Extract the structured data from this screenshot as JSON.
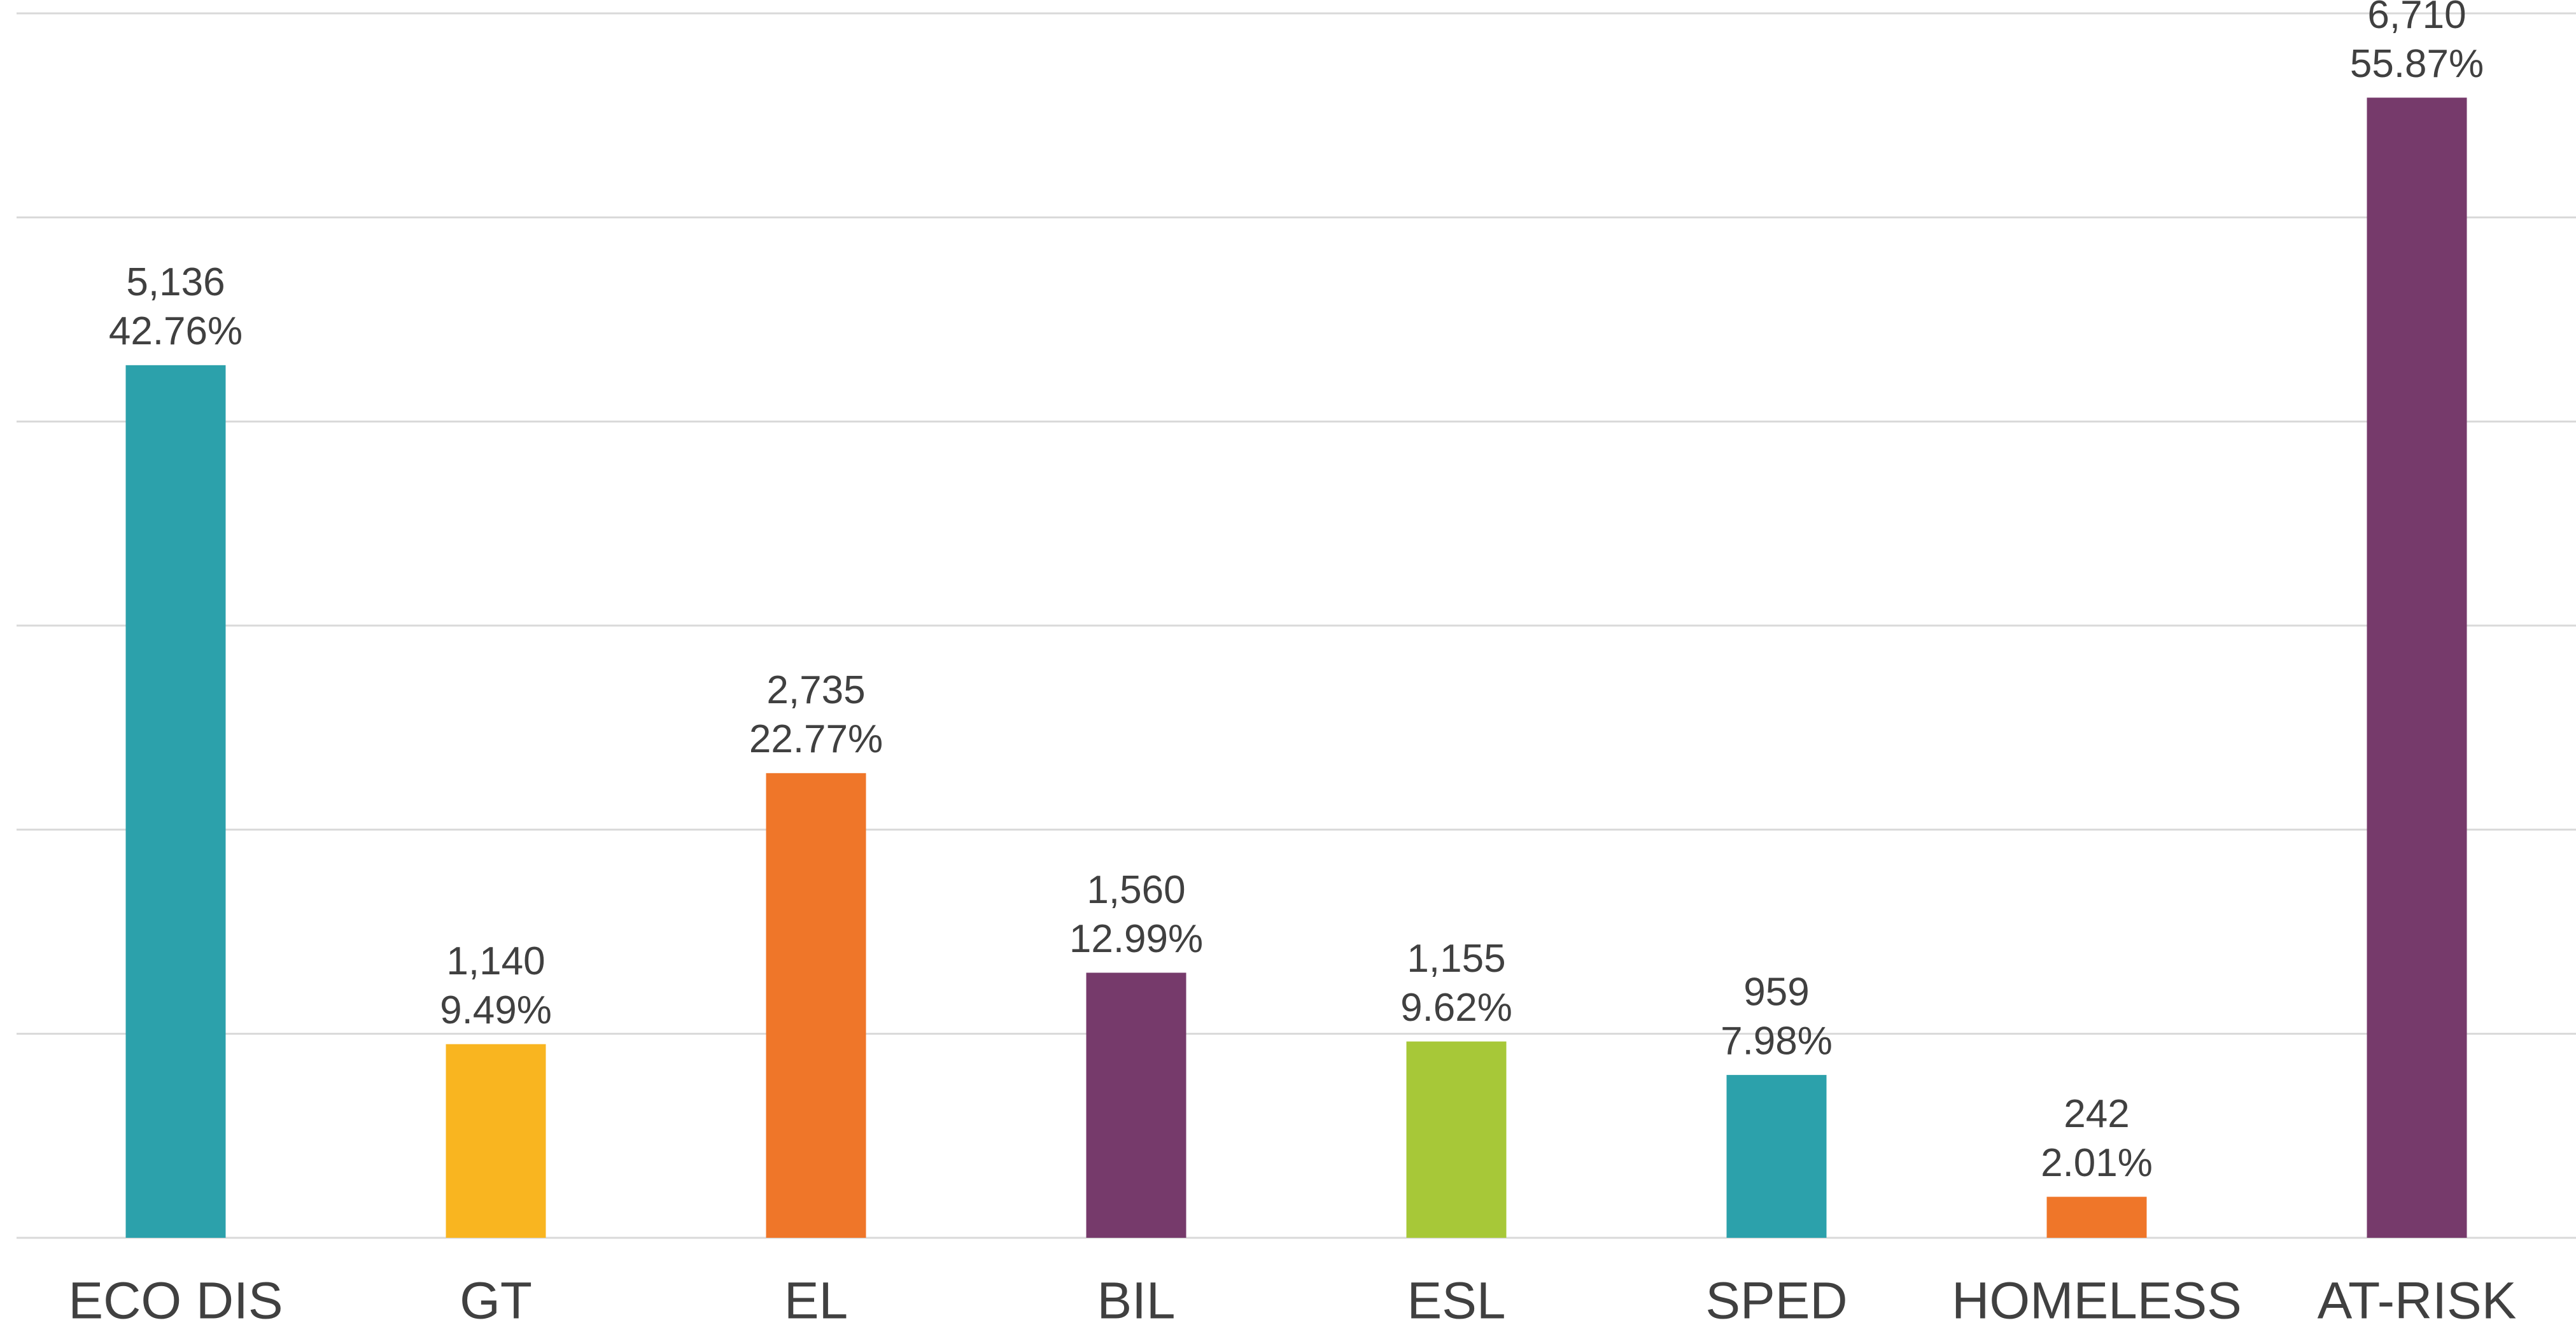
{
  "chart_data": {
    "type": "bar",
    "categories": [
      "ECO DIS",
      "GT",
      "EL",
      "BIL",
      "ESL",
      "SPED",
      "HOMELESS",
      "AT-RISK"
    ],
    "values": [
      42.76,
      9.49,
      22.77,
      12.99,
      9.62,
      7.98,
      2.01,
      55.87
    ],
    "value_labels": [
      "42.76%",
      "9.49%",
      "22.77%",
      "12.99%",
      "9.62%",
      "7.98%",
      "2.01%",
      "55.87%"
    ],
    "counts": [
      5136,
      1140,
      2735,
      1560,
      1155,
      959,
      242,
      6710
    ],
    "count_labels": [
      "5,136",
      "1,140",
      "2,735",
      "1,560",
      "1,155",
      "959",
      "242",
      "6,710"
    ],
    "colors": [
      "#2ca1ab",
      "#f9b520",
      "#ef7629",
      "#763a6b",
      "#a7c838",
      "#2ca1ab",
      "#ef7629",
      "#763a6b"
    ],
    "ylim": [
      0,
      60
    ],
    "yticks": [
      0,
      10,
      20,
      30,
      40,
      50,
      60
    ],
    "grid": true
  }
}
